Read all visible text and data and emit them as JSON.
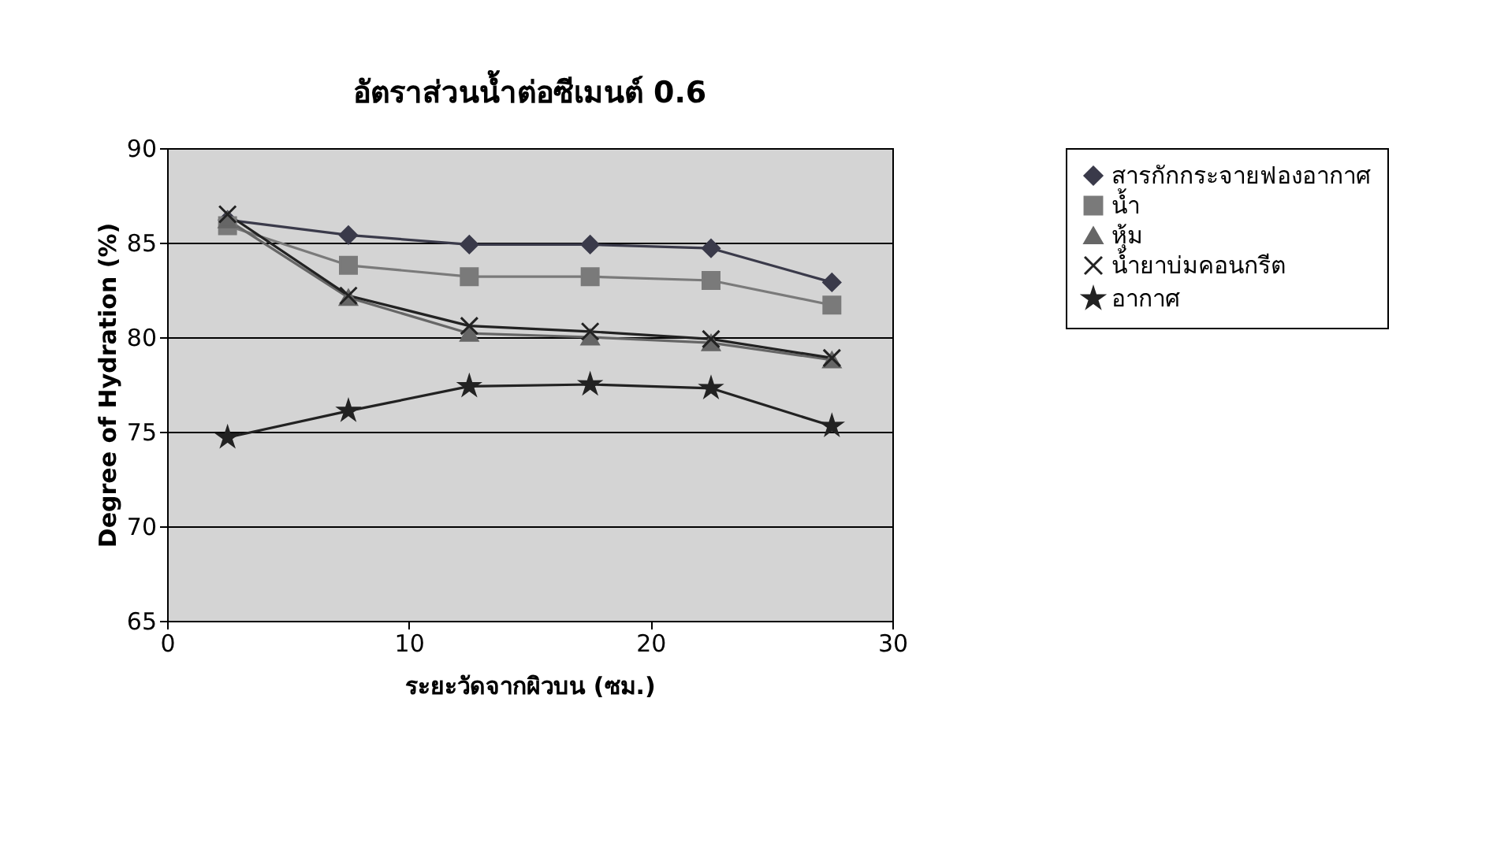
{
  "chart_data": {
    "type": "line",
    "title": "อัตราส่วนน้ำต่อซีเมนต์ 0.6",
    "xlabel": "ระยะวัดจากผิวบน (ซม.)",
    "ylabel": "Degree of Hydration (%)",
    "x": [
      2.5,
      7.5,
      12.5,
      17.5,
      22.5,
      27.5
    ],
    "series": [
      {
        "name": "สารกักกระจายฟองอากาศ",
        "color": "#3a3a4a",
        "marker": "diamond",
        "values": [
          86.2,
          85.4,
          84.9,
          84.9,
          84.7,
          82.9
        ]
      },
      {
        "name": "น้ำ",
        "color": "#7a7a7a",
        "marker": "square",
        "values": [
          85.9,
          83.8,
          83.2,
          83.2,
          83.0,
          81.7
        ]
      },
      {
        "name": "หุ้ม",
        "color": "#666666",
        "marker": "triangle",
        "values": [
          86.2,
          82.1,
          80.2,
          80.0,
          79.7,
          78.8
        ]
      },
      {
        "name": "น้ำยาบ่มคอนกรีต",
        "color": "#222222",
        "marker": "cross",
        "values": [
          86.5,
          82.2,
          80.6,
          80.3,
          79.9,
          78.9
        ]
      },
      {
        "name": "อากาศ",
        "color": "#222222",
        "marker": "star",
        "values": [
          74.7,
          76.1,
          77.4,
          77.5,
          77.3,
          75.3
        ]
      }
    ],
    "xlim": [
      0,
      30
    ],
    "xticks": [
      0,
      10,
      20,
      30
    ],
    "ylim": [
      65,
      90
    ],
    "yticks": [
      65,
      70,
      75,
      80,
      85,
      90
    ],
    "grid": "y",
    "legend": "right",
    "line_style": "solid"
  }
}
